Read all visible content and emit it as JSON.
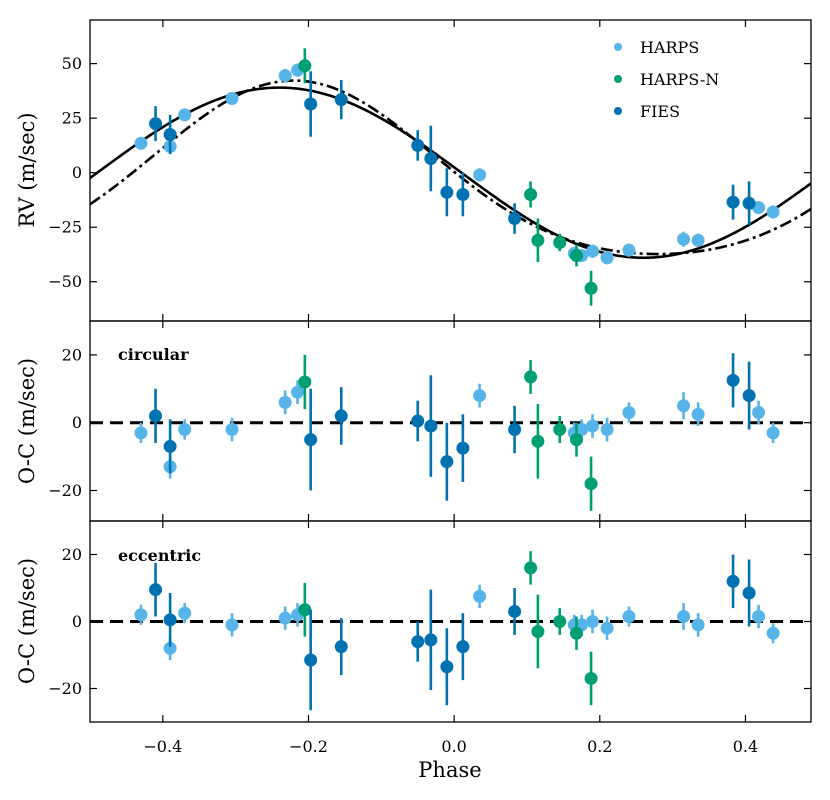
{
  "chart_data": {
    "type": "scatter",
    "xlabel": "Phase",
    "xlim": [
      -0.5,
      0.49
    ],
    "xticks": [
      -0.4,
      -0.2,
      0.0,
      0.2,
      0.4
    ],
    "xtick_labels": [
      "−0.4",
      "−0.2",
      "0.0",
      "0.2",
      "0.4"
    ],
    "colors": {
      "HARPS": "#56B4E9",
      "HARPS-N": "#009E73",
      "FIES": "#0072B2"
    },
    "legend": {
      "placement": "top-right",
      "entries": [
        {
          "name": "HARPS",
          "color": "#56B4E9"
        },
        {
          "name": "HARPS-N",
          "color": "#009E73"
        },
        {
          "name": "FIES",
          "color": "#0072B2"
        }
      ]
    },
    "panels": [
      {
        "id": "rv",
        "ylabel": "RV (m/sec)",
        "ylim": [
          -68,
          70
        ],
        "yticks": [
          -50,
          -25,
          0,
          25,
          50
        ],
        "ytick_labels": [
          "−50",
          "−25",
          "0",
          "25",
          "50"
        ],
        "models": [
          {
            "name": "circular",
            "style": "solid",
            "K": 39,
            "phi": -0.24,
            "kind": "circular"
          },
          {
            "name": "eccentric",
            "style": "dashdot",
            "K": 41,
            "phi": -0.22,
            "kind": "eccentric"
          }
        ],
        "points": [
          {
            "x": -0.43,
            "y": 13.5,
            "err": 2.5,
            "inst": "HARPS"
          },
          {
            "x": -0.39,
            "y": 12,
            "err": 3,
            "inst": "HARPS"
          },
          {
            "x": -0.37,
            "y": 26.5,
            "err": 2.5,
            "inst": "HARPS"
          },
          {
            "x": -0.305,
            "y": 34,
            "err": 2.5,
            "inst": "HARPS"
          },
          {
            "x": -0.232,
            "y": 44.5,
            "err": 3,
            "inst": "HARPS"
          },
          {
            "x": -0.215,
            "y": 47,
            "err": 3,
            "inst": "HARPS"
          },
          {
            "x": 0.035,
            "y": -1,
            "err": 3,
            "inst": "HARPS"
          },
          {
            "x": 0.165,
            "y": -37,
            "err": 3,
            "inst": "HARPS"
          },
          {
            "x": 0.175,
            "y": -38,
            "err": 3,
            "inst": "HARPS"
          },
          {
            "x": 0.19,
            "y": -36,
            "err": 3,
            "inst": "HARPS"
          },
          {
            "x": 0.21,
            "y": -39,
            "err": 3,
            "inst": "HARPS"
          },
          {
            "x": 0.24,
            "y": -35.5,
            "err": 3,
            "inst": "HARPS"
          },
          {
            "x": 0.315,
            "y": -30.5,
            "err": 3.5,
            "inst": "HARPS"
          },
          {
            "x": 0.335,
            "y": -31,
            "err": 3,
            "inst": "HARPS"
          },
          {
            "x": 0.418,
            "y": -16,
            "err": 3,
            "inst": "HARPS"
          },
          {
            "x": 0.438,
            "y": -18,
            "err": 3,
            "inst": "HARPS"
          },
          {
            "x": -0.205,
            "y": 49,
            "err": 8,
            "inst": "HARPS-N"
          },
          {
            "x": 0.105,
            "y": -10,
            "err": 6,
            "inst": "HARPS-N"
          },
          {
            "x": 0.115,
            "y": -31,
            "err": 10,
            "inst": "HARPS-N"
          },
          {
            "x": 0.145,
            "y": -32,
            "err": 4,
            "inst": "HARPS-N"
          },
          {
            "x": 0.168,
            "y": -38,
            "err": 5,
            "inst": "HARPS-N"
          },
          {
            "x": 0.188,
            "y": -53,
            "err": 8,
            "inst": "HARPS-N"
          },
          {
            "x": -0.41,
            "y": 22.5,
            "err": 8,
            "inst": "FIES"
          },
          {
            "x": -0.39,
            "y": 17.5,
            "err": 9,
            "inst": "FIES"
          },
          {
            "x": -0.197,
            "y": 31.5,
            "err": 15,
            "inst": "FIES"
          },
          {
            "x": -0.155,
            "y": 33.5,
            "err": 9,
            "inst": "FIES"
          },
          {
            "x": -0.05,
            "y": 12.5,
            "err": 7,
            "inst": "FIES"
          },
          {
            "x": -0.032,
            "y": 6.5,
            "err": 15,
            "inst": "FIES"
          },
          {
            "x": -0.01,
            "y": -9,
            "err": 11,
            "inst": "FIES"
          },
          {
            "x": 0.012,
            "y": -10,
            "err": 10,
            "inst": "FIES"
          },
          {
            "x": 0.083,
            "y": -21,
            "err": 7,
            "inst": "FIES"
          },
          {
            "x": 0.383,
            "y": -13.5,
            "err": 8,
            "inst": "FIES"
          },
          {
            "x": 0.405,
            "y": -14,
            "err": 10,
            "inst": "FIES"
          }
        ]
      },
      {
        "id": "oc-circular",
        "ylabel": "O-C (m/sec)",
        "tag": "circular",
        "ylim": [
          -29,
          30
        ],
        "yticks": [
          -20,
          0,
          20
        ],
        "ytick_labels": [
          "−20",
          "0",
          "20"
        ],
        "points": [
          {
            "x": -0.43,
            "y": -3,
            "err": 3,
            "inst": "HARPS"
          },
          {
            "x": -0.39,
            "y": -13,
            "err": 3.5,
            "inst": "HARPS"
          },
          {
            "x": -0.37,
            "y": -2,
            "err": 3,
            "inst": "HARPS"
          },
          {
            "x": -0.305,
            "y": -2,
            "err": 3.5,
            "inst": "HARPS"
          },
          {
            "x": -0.232,
            "y": 6,
            "err": 3.5,
            "inst": "HARPS"
          },
          {
            "x": -0.215,
            "y": 9,
            "err": 3.5,
            "inst": "HARPS"
          },
          {
            "x": 0.035,
            "y": 8,
            "err": 3.5,
            "inst": "HARPS"
          },
          {
            "x": 0.165,
            "y": -3,
            "err": 3,
            "inst": "HARPS"
          },
          {
            "x": 0.175,
            "y": -2,
            "err": 3,
            "inst": "HARPS"
          },
          {
            "x": 0.19,
            "y": -1,
            "err": 3.5,
            "inst": "HARPS"
          },
          {
            "x": 0.21,
            "y": -2,
            "err": 3.5,
            "inst": "HARPS"
          },
          {
            "x": 0.24,
            "y": 3,
            "err": 3,
            "inst": "HARPS"
          },
          {
            "x": 0.315,
            "y": 5,
            "err": 4,
            "inst": "HARPS"
          },
          {
            "x": 0.335,
            "y": 2.5,
            "err": 3.5,
            "inst": "HARPS"
          },
          {
            "x": 0.418,
            "y": 3,
            "err": 3.5,
            "inst": "HARPS"
          },
          {
            "x": 0.438,
            "y": -3,
            "err": 3,
            "inst": "HARPS"
          },
          {
            "x": -0.205,
            "y": 12,
            "err": 8,
            "inst": "HARPS-N"
          },
          {
            "x": 0.105,
            "y": 13.5,
            "err": 5,
            "inst": "HARPS-N"
          },
          {
            "x": 0.115,
            "y": -5.5,
            "err": 11,
            "inst": "HARPS-N"
          },
          {
            "x": 0.145,
            "y": -2,
            "err": 4,
            "inst": "HARPS-N"
          },
          {
            "x": 0.168,
            "y": -5,
            "err": 5,
            "inst": "HARPS-N"
          },
          {
            "x": 0.188,
            "y": -18,
            "err": 8,
            "inst": "HARPS-N"
          },
          {
            "x": -0.41,
            "y": 2,
            "err": 8,
            "inst": "FIES"
          },
          {
            "x": -0.39,
            "y": -7,
            "err": 8,
            "inst": "FIES"
          },
          {
            "x": -0.197,
            "y": -5,
            "err": 15,
            "inst": "FIES"
          },
          {
            "x": -0.155,
            "y": 2,
            "err": 8.5,
            "inst": "FIES"
          },
          {
            "x": -0.05,
            "y": 0.5,
            "err": 6,
            "inst": "FIES"
          },
          {
            "x": -0.032,
            "y": -1,
            "err": 15,
            "inst": "FIES"
          },
          {
            "x": -0.01,
            "y": -11.5,
            "err": 11.5,
            "inst": "FIES"
          },
          {
            "x": 0.012,
            "y": -7.5,
            "err": 10,
            "inst": "FIES"
          },
          {
            "x": 0.083,
            "y": -2,
            "err": 7,
            "inst": "FIES"
          },
          {
            "x": 0.383,
            "y": 12.5,
            "err": 8,
            "inst": "FIES"
          },
          {
            "x": 0.405,
            "y": 8,
            "err": 10,
            "inst": "FIES"
          }
        ]
      },
      {
        "id": "oc-eccentric",
        "ylabel": "O-C (m/sec)",
        "tag": "eccentric",
        "ylim": [
          -30,
          30
        ],
        "yticks": [
          -20,
          0,
          20
        ],
        "ytick_labels": [
          "−20",
          "0",
          "20"
        ],
        "points": [
          {
            "x": -0.43,
            "y": 2,
            "err": 3,
            "inst": "HARPS"
          },
          {
            "x": -0.39,
            "y": -8,
            "err": 3.5,
            "inst": "HARPS"
          },
          {
            "x": -0.37,
            "y": 2.5,
            "err": 3,
            "inst": "HARPS"
          },
          {
            "x": -0.305,
            "y": -1,
            "err": 3.5,
            "inst": "HARPS"
          },
          {
            "x": -0.232,
            "y": 1,
            "err": 3.5,
            "inst": "HARPS"
          },
          {
            "x": -0.215,
            "y": 2,
            "err": 3.5,
            "inst": "HARPS"
          },
          {
            "x": 0.035,
            "y": 7.5,
            "err": 3.5,
            "inst": "HARPS"
          },
          {
            "x": 0.165,
            "y": -1,
            "err": 3,
            "inst": "HARPS"
          },
          {
            "x": 0.175,
            "y": -1,
            "err": 3,
            "inst": "HARPS"
          },
          {
            "x": 0.19,
            "y": 0,
            "err": 3.5,
            "inst": "HARPS"
          },
          {
            "x": 0.21,
            "y": -2,
            "err": 3.5,
            "inst": "HARPS"
          },
          {
            "x": 0.24,
            "y": 1.5,
            "err": 3,
            "inst": "HARPS"
          },
          {
            "x": 0.315,
            "y": 1.5,
            "err": 4,
            "inst": "HARPS"
          },
          {
            "x": 0.335,
            "y": -1,
            "err": 3.5,
            "inst": "HARPS"
          },
          {
            "x": 0.418,
            "y": 1.5,
            "err": 3.5,
            "inst": "HARPS"
          },
          {
            "x": 0.438,
            "y": -3.5,
            "err": 3,
            "inst": "HARPS"
          },
          {
            "x": -0.205,
            "y": 3.5,
            "err": 8,
            "inst": "HARPS-N"
          },
          {
            "x": 0.105,
            "y": 16,
            "err": 5,
            "inst": "HARPS-N"
          },
          {
            "x": 0.115,
            "y": -3,
            "err": 11,
            "inst": "HARPS-N"
          },
          {
            "x": 0.145,
            "y": 0,
            "err": 4,
            "inst": "HARPS-N"
          },
          {
            "x": 0.168,
            "y": -3.5,
            "err": 5,
            "inst": "HARPS-N"
          },
          {
            "x": 0.188,
            "y": -17,
            "err": 8,
            "inst": "HARPS-N"
          },
          {
            "x": -0.41,
            "y": 9.5,
            "err": 8,
            "inst": "FIES"
          },
          {
            "x": -0.39,
            "y": 0.5,
            "err": 8,
            "inst": "FIES"
          },
          {
            "x": -0.197,
            "y": -11.5,
            "err": 15,
            "inst": "FIES"
          },
          {
            "x": -0.155,
            "y": -7.5,
            "err": 8.5,
            "inst": "FIES"
          },
          {
            "x": -0.05,
            "y": -6,
            "err": 6,
            "inst": "FIES"
          },
          {
            "x": -0.032,
            "y": -5.5,
            "err": 15,
            "inst": "FIES"
          },
          {
            "x": -0.01,
            "y": -13.5,
            "err": 11.5,
            "inst": "FIES"
          },
          {
            "x": 0.012,
            "y": -7.5,
            "err": 10,
            "inst": "FIES"
          },
          {
            "x": 0.083,
            "y": 3,
            "err": 7,
            "inst": "FIES"
          },
          {
            "x": 0.383,
            "y": 12,
            "err": 8,
            "inst": "FIES"
          },
          {
            "x": 0.405,
            "y": 8.5,
            "err": 10,
            "inst": "FIES"
          }
        ]
      }
    ]
  }
}
